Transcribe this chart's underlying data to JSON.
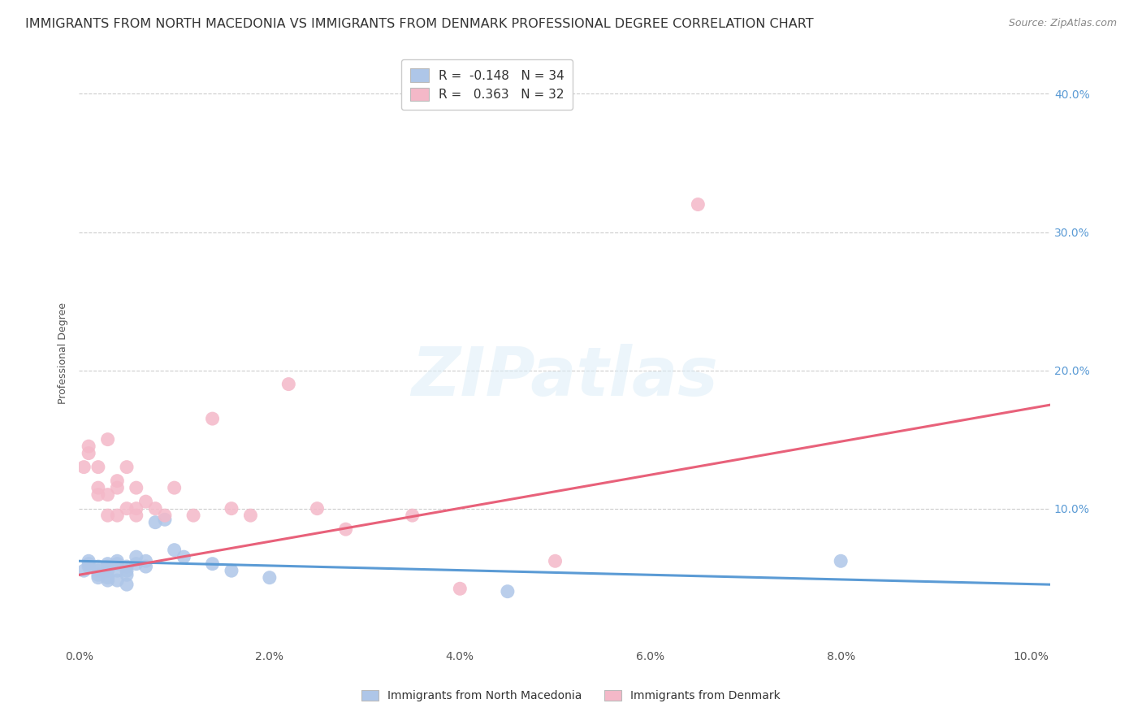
{
  "title": "IMMIGRANTS FROM NORTH MACEDONIA VS IMMIGRANTS FROM DENMARK PROFESSIONAL DEGREE CORRELATION CHART",
  "source": "Source: ZipAtlas.com",
  "ylabel": "Professional Degree",
  "xlim": [
    0.0,
    0.102
  ],
  "ylim": [
    0.0,
    0.425
  ],
  "x_tick_vals": [
    0.0,
    0.02,
    0.04,
    0.06,
    0.08,
    0.1
  ],
  "x_tick_labels": [
    "0.0%",
    "2.0%",
    "4.0%",
    "6.0%",
    "8.0%",
    "10.0%"
  ],
  "y_tick_vals": [
    0.1,
    0.2,
    0.3,
    0.4
  ],
  "y_tick_labels": [
    "10.0%",
    "20.0%",
    "30.0%",
    "40.0%"
  ],
  "background_color": "#ffffff",
  "grid_color": "#cccccc",
  "watermark": "ZIPatlas",
  "watermark_color": "#ddeef8",
  "title_fontsize": 11.5,
  "tick_fontsize": 10,
  "axis_label_fontsize": 9,
  "series": [
    {
      "name": "Immigrants from North Macedonia",
      "R": -0.148,
      "N": 34,
      "color_scatter": "#aec6e8",
      "color_line": "#5b9bd5",
      "x": [
        0.0005,
        0.001,
        0.001,
        0.001,
        0.002,
        0.002,
        0.002,
        0.002,
        0.003,
        0.003,
        0.003,
        0.003,
        0.003,
        0.004,
        0.004,
        0.004,
        0.004,
        0.005,
        0.005,
        0.005,
        0.005,
        0.006,
        0.006,
        0.007,
        0.007,
        0.008,
        0.009,
        0.01,
        0.011,
        0.014,
        0.016,
        0.02,
        0.045,
        0.08
      ],
      "y": [
        0.055,
        0.06,
        0.058,
        0.062,
        0.055,
        0.052,
        0.058,
        0.05,
        0.06,
        0.055,
        0.05,
        0.048,
        0.058,
        0.062,
        0.055,
        0.06,
        0.048,
        0.058,
        0.055,
        0.045,
        0.052,
        0.065,
        0.06,
        0.062,
        0.058,
        0.09,
        0.092,
        0.07,
        0.065,
        0.06,
        0.055,
        0.05,
        0.04,
        0.062
      ],
      "trend_x": [
        0.0,
        0.102
      ],
      "trend_y": [
        0.062,
        0.045
      ]
    },
    {
      "name": "Immigrants from Denmark",
      "R": 0.363,
      "N": 32,
      "color_scatter": "#f4b8c8",
      "color_line": "#e8617a",
      "x": [
        0.0005,
        0.001,
        0.001,
        0.002,
        0.002,
        0.002,
        0.003,
        0.003,
        0.003,
        0.004,
        0.004,
        0.004,
        0.005,
        0.005,
        0.006,
        0.006,
        0.006,
        0.007,
        0.008,
        0.009,
        0.01,
        0.012,
        0.014,
        0.016,
        0.018,
        0.022,
        0.025,
        0.028,
        0.035,
        0.04,
        0.05,
        0.065
      ],
      "y": [
        0.13,
        0.145,
        0.14,
        0.13,
        0.115,
        0.11,
        0.095,
        0.11,
        0.15,
        0.095,
        0.12,
        0.115,
        0.13,
        0.1,
        0.1,
        0.115,
        0.095,
        0.105,
        0.1,
        0.095,
        0.115,
        0.095,
        0.165,
        0.1,
        0.095,
        0.19,
        0.1,
        0.085,
        0.095,
        0.042,
        0.062,
        0.32
      ],
      "trend_x": [
        0.0,
        0.102
      ],
      "trend_y": [
        0.052,
        0.175
      ]
    }
  ]
}
